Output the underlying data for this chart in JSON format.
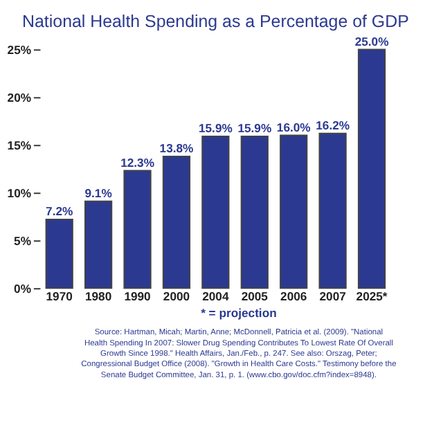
{
  "chart_data": {
    "type": "bar",
    "title": "National Health Spending as a Percentage of GDP",
    "categories": [
      "1970",
      "1980",
      "1990",
      "2000",
      "2004",
      "2005",
      "2006",
      "2007",
      "2025*"
    ],
    "values": [
      7.2,
      9.1,
      12.3,
      13.8,
      15.9,
      15.9,
      16.0,
      16.2,
      25.0
    ],
    "value_labels": [
      "7.2%",
      "9.1%",
      "12.3%",
      "13.8%",
      "15.9%",
      "15.9%",
      "16.0%",
      "16.2%",
      "25.0%"
    ],
    "color": "#2b3990",
    "ylim": [
      0,
      25
    ],
    "yticks": [
      {
        "value": 0,
        "label": "0%"
      },
      {
        "value": 5,
        "label": "5%"
      },
      {
        "value": 10,
        "label": "10%"
      },
      {
        "value": 15,
        "label": "15%"
      },
      {
        "value": 20,
        "label": "20%"
      },
      {
        "value": 25,
        "label": "25%"
      }
    ],
    "grid": false,
    "annotations": [
      "* = projection",
      "Source: Hartman, Micah; Martin, Anne; McDonnell, Patricia et al. (2009). \"National Health Spending In 2007: Slower Drug Spending Contributes To Lowest Rate Of Overall Growth Since 1998.\" Health Affairs, Jan./Feb., p. 247. See also: Orszag, Peter; Congressional Budget Office (2008). \"Growth in Health Care Costs.\" Testimony before the Senate Budget Committee, Jan. 31, p. 1. (www.cbo.gov/doc.cfm?index=8948)."
    ]
  }
}
